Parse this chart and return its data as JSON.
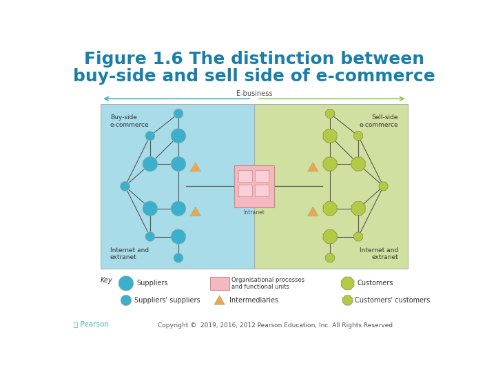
{
  "title_line1": "Figure 1.6 The distinction between",
  "title_line2": "buy-side and sell side of e-commerce",
  "title_color": "#1a7fa8",
  "title_fontsize": 18,
  "copyright_text": "Copyright ©  2019, 2016, 2012 Pearson Education, Inc. All Rights Reserved",
  "bg_color": "#ffffff",
  "buy_side_color": "#a8dce8",
  "sell_side_color": "#cfe0a0",
  "intranet_color": "#f4b8c0",
  "arrow_color_left": "#3ab0cc",
  "arrow_color_right": "#88cc44",
  "ebusiness_label": "E-business",
  "buy_side_label": "Buy-side\ne-commerce",
  "sell_side_label": "Sell-side\ne-commerce",
  "internet_extranet_left": "Internet and\nextranet",
  "internet_extranet_right": "Internet and\nextranet",
  "intranet_label": "Intranet",
  "key_label": "Key",
  "supplier_color": "#3ab0cc",
  "customer_color": "#b0cc44",
  "intermediary_color": "#e8a850",
  "key_suppliers_label": "Suppliers",
  "key_suppliers_suppliers_label": "Suppliers' suppliers",
  "key_org_label": "Organisational processes\nand functional units",
  "key_intermediaries_label": "Intermediaries",
  "key_customers_label": "Customers",
  "key_customers_customers_label": "Customers' customers"
}
